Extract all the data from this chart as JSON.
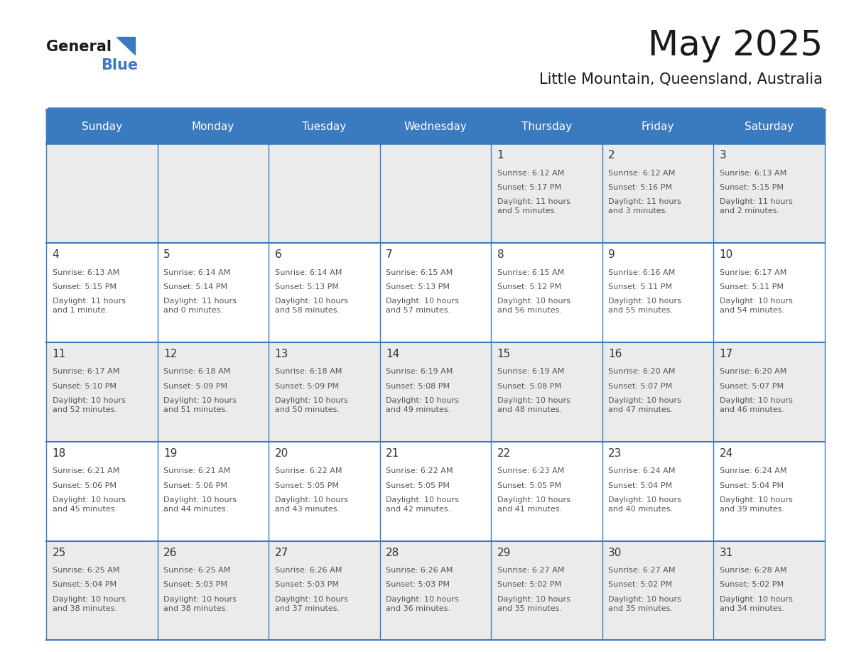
{
  "title": "May 2025",
  "subtitle": "Little Mountain, Queensland, Australia",
  "header_bg": "#3a7bbf",
  "header_text": "#ffffff",
  "day_names": [
    "Sunday",
    "Monday",
    "Tuesday",
    "Wednesday",
    "Thursday",
    "Friday",
    "Saturday"
  ],
  "row0_bg": "#ebebeb",
  "row1_bg": "#ffffff",
  "border_color": "#3a7bbf",
  "text_color": "#555555",
  "num_color": "#333333",
  "calendar": [
    [
      null,
      null,
      null,
      null,
      {
        "day": "1",
        "sunrise": "6:12 AM",
        "sunset": "5:17 PM",
        "daylight": "11 hours\nand 5 minutes."
      },
      {
        "day": "2",
        "sunrise": "6:12 AM",
        "sunset": "5:16 PM",
        "daylight": "11 hours\nand 3 minutes."
      },
      {
        "day": "3",
        "sunrise": "6:13 AM",
        "sunset": "5:15 PM",
        "daylight": "11 hours\nand 2 minutes."
      }
    ],
    [
      {
        "day": "4",
        "sunrise": "6:13 AM",
        "sunset": "5:15 PM",
        "daylight": "11 hours\nand 1 minute."
      },
      {
        "day": "5",
        "sunrise": "6:14 AM",
        "sunset": "5:14 PM",
        "daylight": "11 hours\nand 0 minutes."
      },
      {
        "day": "6",
        "sunrise": "6:14 AM",
        "sunset": "5:13 PM",
        "daylight": "10 hours\nand 58 minutes."
      },
      {
        "day": "7",
        "sunrise": "6:15 AM",
        "sunset": "5:13 PM",
        "daylight": "10 hours\nand 57 minutes."
      },
      {
        "day": "8",
        "sunrise": "6:15 AM",
        "sunset": "5:12 PM",
        "daylight": "10 hours\nand 56 minutes."
      },
      {
        "day": "9",
        "sunrise": "6:16 AM",
        "sunset": "5:11 PM",
        "daylight": "10 hours\nand 55 minutes."
      },
      {
        "day": "10",
        "sunrise": "6:17 AM",
        "sunset": "5:11 PM",
        "daylight": "10 hours\nand 54 minutes."
      }
    ],
    [
      {
        "day": "11",
        "sunrise": "6:17 AM",
        "sunset": "5:10 PM",
        "daylight": "10 hours\nand 52 minutes."
      },
      {
        "day": "12",
        "sunrise": "6:18 AM",
        "sunset": "5:09 PM",
        "daylight": "10 hours\nand 51 minutes."
      },
      {
        "day": "13",
        "sunrise": "6:18 AM",
        "sunset": "5:09 PM",
        "daylight": "10 hours\nand 50 minutes."
      },
      {
        "day": "14",
        "sunrise": "6:19 AM",
        "sunset": "5:08 PM",
        "daylight": "10 hours\nand 49 minutes."
      },
      {
        "day": "15",
        "sunrise": "6:19 AM",
        "sunset": "5:08 PM",
        "daylight": "10 hours\nand 48 minutes."
      },
      {
        "day": "16",
        "sunrise": "6:20 AM",
        "sunset": "5:07 PM",
        "daylight": "10 hours\nand 47 minutes."
      },
      {
        "day": "17",
        "sunrise": "6:20 AM",
        "sunset": "5:07 PM",
        "daylight": "10 hours\nand 46 minutes."
      }
    ],
    [
      {
        "day": "18",
        "sunrise": "6:21 AM",
        "sunset": "5:06 PM",
        "daylight": "10 hours\nand 45 minutes."
      },
      {
        "day": "19",
        "sunrise": "6:21 AM",
        "sunset": "5:06 PM",
        "daylight": "10 hours\nand 44 minutes."
      },
      {
        "day": "20",
        "sunrise": "6:22 AM",
        "sunset": "5:05 PM",
        "daylight": "10 hours\nand 43 minutes."
      },
      {
        "day": "21",
        "sunrise": "6:22 AM",
        "sunset": "5:05 PM",
        "daylight": "10 hours\nand 42 minutes."
      },
      {
        "day": "22",
        "sunrise": "6:23 AM",
        "sunset": "5:05 PM",
        "daylight": "10 hours\nand 41 minutes."
      },
      {
        "day": "23",
        "sunrise": "6:24 AM",
        "sunset": "5:04 PM",
        "daylight": "10 hours\nand 40 minutes."
      },
      {
        "day": "24",
        "sunrise": "6:24 AM",
        "sunset": "5:04 PM",
        "daylight": "10 hours\nand 39 minutes."
      }
    ],
    [
      {
        "day": "25",
        "sunrise": "6:25 AM",
        "sunset": "5:04 PM",
        "daylight": "10 hours\nand 38 minutes."
      },
      {
        "day": "26",
        "sunrise": "6:25 AM",
        "sunset": "5:03 PM",
        "daylight": "10 hours\nand 38 minutes."
      },
      {
        "day": "27",
        "sunrise": "6:26 AM",
        "sunset": "5:03 PM",
        "daylight": "10 hours\nand 37 minutes."
      },
      {
        "day": "28",
        "sunrise": "6:26 AM",
        "sunset": "5:03 PM",
        "daylight": "10 hours\nand 36 minutes."
      },
      {
        "day": "29",
        "sunrise": "6:27 AM",
        "sunset": "5:02 PM",
        "daylight": "10 hours\nand 35 minutes."
      },
      {
        "day": "30",
        "sunrise": "6:27 AM",
        "sunset": "5:02 PM",
        "daylight": "10 hours\nand 35 minutes."
      },
      {
        "day": "31",
        "sunrise": "6:28 AM",
        "sunset": "5:02 PM",
        "daylight": "10 hours\nand 34 minutes."
      }
    ]
  ]
}
